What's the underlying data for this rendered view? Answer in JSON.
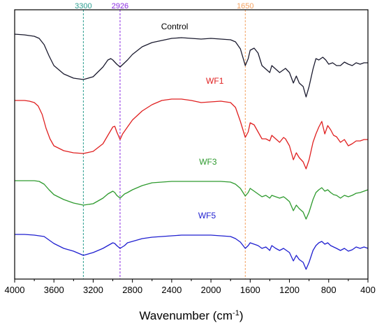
{
  "chart_data": {
    "type": "line",
    "xlabel": "Wavenumber (cm",
    "xlabel_sup": "-1",
    "xlabel_close": ")",
    "ylabel": "",
    "xlim": [
      4000,
      400
    ],
    "x_reversed": true,
    "x_ticks": [
      "4000",
      "3600",
      "3200",
      "2800",
      "2400",
      "2000",
      "1600",
      "1200",
      "800",
      "400"
    ],
    "y_ticks_shown": false,
    "grid": false,
    "legend": "inline labels",
    "reference_lines": [
      {
        "x": 3300,
        "label": "3300",
        "color": "#2a9d8f"
      },
      {
        "x": 2926,
        "label": "2926",
        "color": "#8a2be2"
      },
      {
        "x": 1650,
        "label": "1650",
        "color": "#f4a261"
      }
    ],
    "series": [
      {
        "name": "Control",
        "color": "#1a1a2e",
        "label_x": 2370,
        "points": [
          [
            4000,
            35
          ],
          [
            3900,
            36
          ],
          [
            3800,
            38
          ],
          [
            3750,
            41
          ],
          [
            3700,
            50
          ],
          [
            3650,
            66
          ],
          [
            3600,
            80
          ],
          [
            3500,
            92
          ],
          [
            3400,
            98
          ],
          [
            3300,
            100
          ],
          [
            3200,
            96
          ],
          [
            3100,
            82
          ],
          [
            3050,
            72
          ],
          [
            3020,
            70
          ],
          [
            3000,
            72
          ],
          [
            2960,
            78
          ],
          [
            2926,
            82
          ],
          [
            2880,
            76
          ],
          [
            2850,
            72
          ],
          [
            2800,
            64
          ],
          [
            2700,
            53
          ],
          [
            2600,
            47
          ],
          [
            2500,
            44
          ],
          [
            2400,
            41
          ],
          [
            2300,
            40
          ],
          [
            2200,
            41
          ],
          [
            2100,
            42
          ],
          [
            2000,
            41
          ],
          [
            1900,
            42
          ],
          [
            1800,
            43
          ],
          [
            1750,
            46
          ],
          [
            1700,
            56
          ],
          [
            1650,
            80
          ],
          [
            1620,
            70
          ],
          [
            1600,
            58
          ],
          [
            1560,
            55
          ],
          [
            1520,
            62
          ],
          [
            1480,
            80
          ],
          [
            1440,
            85
          ],
          [
            1400,
            90
          ],
          [
            1380,
            80
          ],
          [
            1340,
            85
          ],
          [
            1300,
            90
          ],
          [
            1260,
            86
          ],
          [
            1240,
            84
          ],
          [
            1200,
            90
          ],
          [
            1160,
            105
          ],
          [
            1130,
            95
          ],
          [
            1100,
            105
          ],
          [
            1060,
            110
          ],
          [
            1030,
            125
          ],
          [
            1000,
            110
          ],
          [
            960,
            85
          ],
          [
            930,
            70
          ],
          [
            900,
            72
          ],
          [
            860,
            68
          ],
          [
            830,
            72
          ],
          [
            800,
            78
          ],
          [
            760,
            76
          ],
          [
            720,
            80
          ],
          [
            680,
            80
          ],
          [
            640,
            75
          ],
          [
            600,
            78
          ],
          [
            560,
            80
          ],
          [
            520,
            76
          ],
          [
            480,
            78
          ],
          [
            440,
            76
          ],
          [
            400,
            76
          ]
        ]
      },
      {
        "name": "WF1",
        "color": "#e02020",
        "label_x": 1960,
        "points": [
          [
            4000,
            130
          ],
          [
            3950,
            130
          ],
          [
            3900,
            130
          ],
          [
            3850,
            131
          ],
          [
            3800,
            133
          ],
          [
            3760,
            138
          ],
          [
            3720,
            150
          ],
          [
            3680,
            170
          ],
          [
            3640,
            185
          ],
          [
            3600,
            195
          ],
          [
            3500,
            202
          ],
          [
            3400,
            205
          ],
          [
            3300,
            206
          ],
          [
            3200,
            203
          ],
          [
            3100,
            192
          ],
          [
            3050,
            180
          ],
          [
            3000,
            168
          ],
          [
            2980,
            167
          ],
          [
            2960,
            175
          ],
          [
            2926,
            186
          ],
          [
            2900,
            178
          ],
          [
            2850,
            168
          ],
          [
            2800,
            158
          ],
          [
            2700,
            145
          ],
          [
            2600,
            136
          ],
          [
            2500,
            130
          ],
          [
            2400,
            128
          ],
          [
            2300,
            128
          ],
          [
            2200,
            130
          ],
          [
            2100,
            133
          ],
          [
            2000,
            132
          ],
          [
            1900,
            131
          ],
          [
            1800,
            133
          ],
          [
            1750,
            140
          ],
          [
            1700,
            160
          ],
          [
            1650,
            183
          ],
          [
            1620,
            175
          ],
          [
            1600,
            162
          ],
          [
            1560,
            165
          ],
          [
            1520,
            175
          ],
          [
            1480,
            185
          ],
          [
            1440,
            185
          ],
          [
            1400,
            188
          ],
          [
            1380,
            180
          ],
          [
            1340,
            185
          ],
          [
            1300,
            190
          ],
          [
            1260,
            183
          ],
          [
            1240,
            185
          ],
          [
            1200,
            195
          ],
          [
            1160,
            215
          ],
          [
            1130,
            205
          ],
          [
            1100,
            212
          ],
          [
            1060,
            218
          ],
          [
            1030,
            228
          ],
          [
            1000,
            215
          ],
          [
            960,
            190
          ],
          [
            930,
            178
          ],
          [
            900,
            168
          ],
          [
            870,
            160
          ],
          [
            840,
            178
          ],
          [
            810,
            166
          ],
          [
            780,
            172
          ],
          [
            750,
            180
          ],
          [
            720,
            182
          ],
          [
            680,
            190
          ],
          [
            640,
            186
          ],
          [
            600,
            195
          ],
          [
            560,
            192
          ],
          [
            520,
            188
          ],
          [
            480,
            188
          ],
          [
            440,
            186
          ],
          [
            400,
            186
          ]
        ]
      },
      {
        "name": "WF3",
        "color": "#2e9a2e",
        "label_x": 2030,
        "points": [
          [
            4000,
            245
          ],
          [
            3900,
            245
          ],
          [
            3800,
            245
          ],
          [
            3750,
            246
          ],
          [
            3700,
            250
          ],
          [
            3650,
            258
          ],
          [
            3600,
            265
          ],
          [
            3500,
            272
          ],
          [
            3400,
            277
          ],
          [
            3300,
            280
          ],
          [
            3200,
            278
          ],
          [
            3100,
            270
          ],
          [
            3050,
            264
          ],
          [
            3000,
            260
          ],
          [
            2980,
            262
          ],
          [
            2960,
            266
          ],
          [
            2926,
            270
          ],
          [
            2880,
            264
          ],
          [
            2850,
            262
          ],
          [
            2800,
            258
          ],
          [
            2700,
            252
          ],
          [
            2600,
            248
          ],
          [
            2500,
            247
          ],
          [
            2400,
            246
          ],
          [
            2300,
            246
          ],
          [
            2200,
            246
          ],
          [
            2100,
            246
          ],
          [
            2000,
            246
          ],
          [
            1900,
            246
          ],
          [
            1800,
            247
          ],
          [
            1750,
            250
          ],
          [
            1700,
            256
          ],
          [
            1650,
            267
          ],
          [
            1620,
            262
          ],
          [
            1600,
            256
          ],
          [
            1560,
            260
          ],
          [
            1520,
            264
          ],
          [
            1480,
            268
          ],
          [
            1440,
            266
          ],
          [
            1400,
            270
          ],
          [
            1380,
            266
          ],
          [
            1340,
            268
          ],
          [
            1300,
            270
          ],
          [
            1260,
            268
          ],
          [
            1240,
            270
          ],
          [
            1200,
            275
          ],
          [
            1160,
            288
          ],
          [
            1130,
            280
          ],
          [
            1100,
            285
          ],
          [
            1060,
            290
          ],
          [
            1030,
            300
          ],
          [
            1000,
            290
          ],
          [
            960,
            272
          ],
          [
            930,
            262
          ],
          [
            900,
            258
          ],
          [
            870,
            255
          ],
          [
            840,
            260
          ],
          [
            810,
            258
          ],
          [
            780,
            262
          ],
          [
            750,
            265
          ],
          [
            720,
            266
          ],
          [
            680,
            270
          ],
          [
            640,
            266
          ],
          [
            600,
            268
          ],
          [
            560,
            266
          ],
          [
            520,
            263
          ],
          [
            480,
            262
          ],
          [
            440,
            260
          ],
          [
            400,
            258
          ]
        ]
      },
      {
        "name": "WF5",
        "color": "#1f1fd0",
        "label_x": 2040,
        "points": [
          [
            4000,
            322
          ],
          [
            3900,
            322
          ],
          [
            3800,
            323
          ],
          [
            3700,
            325
          ],
          [
            3650,
            330
          ],
          [
            3600,
            335
          ],
          [
            3500,
            342
          ],
          [
            3400,
            346
          ],
          [
            3300,
            352
          ],
          [
            3200,
            348
          ],
          [
            3100,
            342
          ],
          [
            3050,
            338
          ],
          [
            3000,
            334
          ],
          [
            2980,
            335
          ],
          [
            2960,
            338
          ],
          [
            2926,
            342
          ],
          [
            2880,
            338
          ],
          [
            2850,
            334
          ],
          [
            2800,
            332
          ],
          [
            2700,
            328
          ],
          [
            2600,
            326
          ],
          [
            2500,
            325
          ],
          [
            2400,
            324
          ],
          [
            2300,
            323
          ],
          [
            2200,
            323
          ],
          [
            2100,
            323
          ],
          [
            2000,
            323
          ],
          [
            1900,
            324
          ],
          [
            1800,
            325
          ],
          [
            1750,
            328
          ],
          [
            1700,
            333
          ],
          [
            1650,
            342
          ],
          [
            1620,
            338
          ],
          [
            1600,
            334
          ],
          [
            1560,
            336
          ],
          [
            1520,
            338
          ],
          [
            1480,
            342
          ],
          [
            1440,
            340
          ],
          [
            1400,
            345
          ],
          [
            1380,
            338
          ],
          [
            1340,
            342
          ],
          [
            1300,
            345
          ],
          [
            1260,
            342
          ],
          [
            1240,
            344
          ],
          [
            1200,
            348
          ],
          [
            1160,
            360
          ],
          [
            1130,
            352
          ],
          [
            1100,
            358
          ],
          [
            1060,
            362
          ],
          [
            1030,
            372
          ],
          [
            1000,
            362
          ],
          [
            960,
            345
          ],
          [
            930,
            338
          ],
          [
            900,
            334
          ],
          [
            870,
            332
          ],
          [
            840,
            336
          ],
          [
            810,
            334
          ],
          [
            780,
            338
          ],
          [
            750,
            340
          ],
          [
            720,
            342
          ],
          [
            680,
            345
          ],
          [
            640,
            342
          ],
          [
            600,
            346
          ],
          [
            560,
            344
          ],
          [
            520,
            340
          ],
          [
            480,
            342
          ],
          [
            440,
            340
          ],
          [
            400,
            342
          ]
        ]
      }
    ]
  }
}
